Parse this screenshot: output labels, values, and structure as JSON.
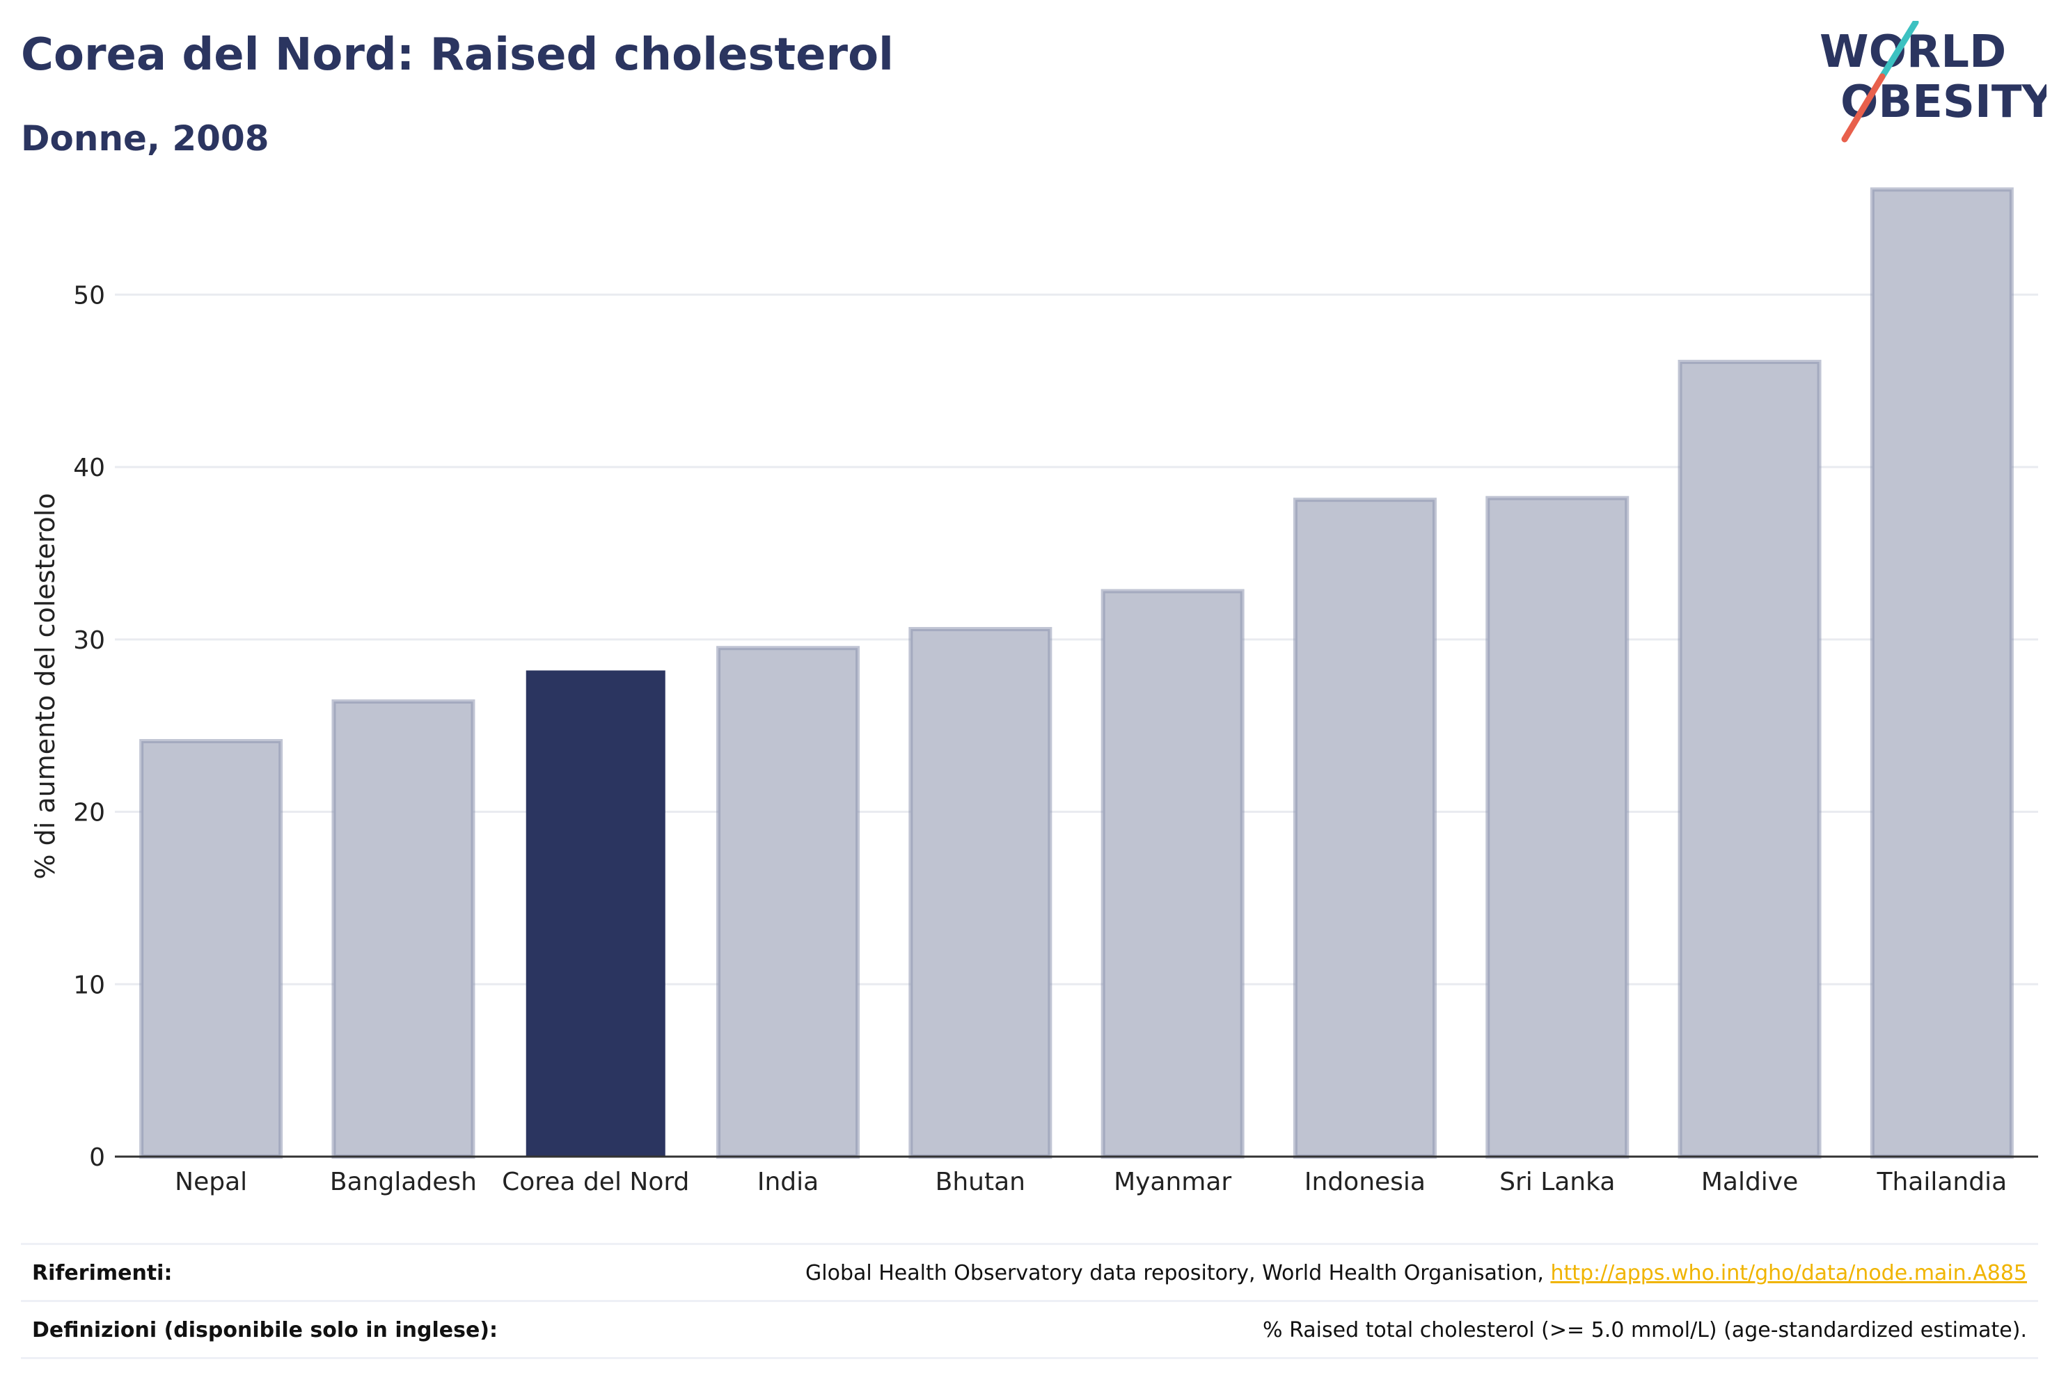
{
  "header": {
    "title": "Corea del Nord: Raised cholesterol",
    "subtitle": "Donne, 2008"
  },
  "logo": {
    "line1": "WORLD",
    "line2": "OBESITY"
  },
  "colors": {
    "highlight": "#2b3560",
    "bar": "#bfc3d1",
    "bar_stroke": "#8e95b0",
    "grid": "#e9ebf0",
    "link": "#f0b400",
    "logo_slash_teal": "#3cc1c1",
    "logo_slash_red": "#e8604c"
  },
  "chart_data": {
    "type": "bar",
    "categories": [
      "Nepal",
      "Bangladesh",
      "Corea del Nord",
      "India",
      "Bhutan",
      "Myanmar",
      "Indonesia",
      "Sri Lanka",
      "Maldive",
      "Thailandia"
    ],
    "values": [
      24.1,
      26.4,
      28.2,
      29.5,
      30.6,
      32.8,
      38.1,
      38.2,
      46.1,
      56.1
    ],
    "highlight_index": 2,
    "ylabel": "% di aumento del colesterolo",
    "xlabel": "",
    "ylim": [
      0,
      57
    ],
    "yticks": [
      0,
      10,
      20,
      30,
      40,
      50
    ],
    "grid": true
  },
  "footer": {
    "references_label": "Riferimenti:",
    "references_text": "Global Health Observatory data repository, World Health Organisation, ",
    "references_link": "http://apps.who.int/gho/data/node.main.A885",
    "definitions_label": "Definizioni (disponibile solo in inglese):",
    "definitions_text": "% Raised total cholesterol (>= 5.0 mmol/L) (age-standardized estimate)."
  }
}
